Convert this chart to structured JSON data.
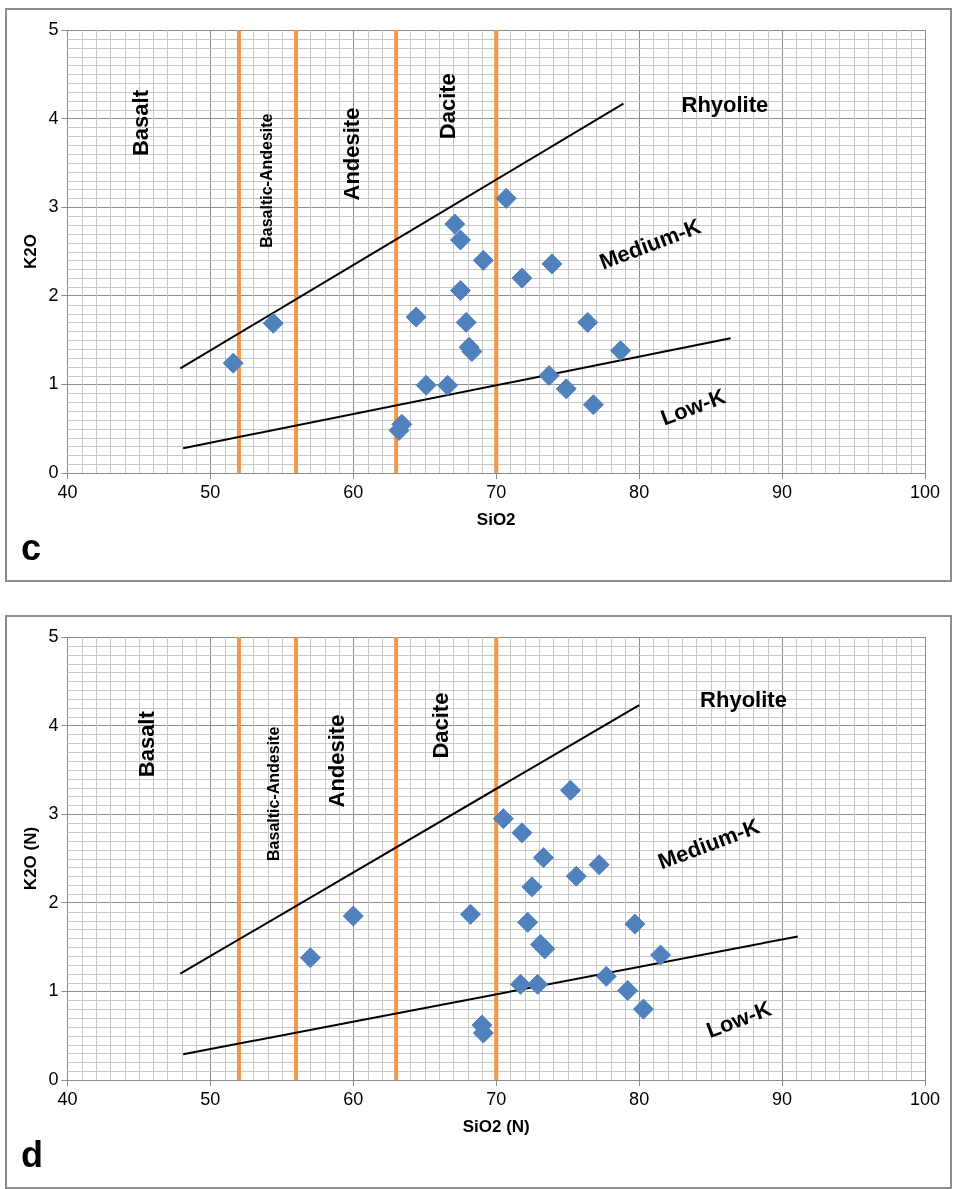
{
  "chart_data": [
    {
      "type": "scatter",
      "xlabel": "SiO2",
      "ylabel": "K2O",
      "xlim": [
        40,
        100
      ],
      "xticks": [
        40,
        50,
        60,
        70,
        80,
        90,
        100
      ],
      "ylim": [
        0,
        5
      ],
      "yticks": [
        0,
        1,
        2,
        3,
        4,
        5
      ],
      "grid": true,
      "legend": false,
      "marker": "diamond",
      "x": [
        51.6,
        54.4,
        63.4,
        63.2,
        64.4,
        65.1,
        66.6,
        67.1,
        67.5,
        67.5,
        67.9,
        68.1,
        68.3,
        69.1,
        70.7,
        71.8,
        73.7,
        73.9,
        74.9,
        76.4,
        76.8,
        78.7
      ],
      "series": [
        {
          "color": "#4f81bd",
          "values": [
            1.24,
            1.69,
            0.55,
            0.48,
            1.76,
            0.99,
            0.99,
            2.81,
            2.63,
            2.06,
            1.7,
            1.42,
            1.37,
            2.4,
            3.1,
            2.2,
            1.1,
            2.36,
            0.95,
            1.7,
            0.77,
            1.38
          ]
        },
        {
          "type": "line",
          "marker": "none",
          "color": "#000000",
          "x": [
            47.9,
            78.9
          ],
          "values": [
            1.18,
            4.17
          ]
        },
        {
          "type": "line",
          "marker": "none",
          "color": "#000000",
          "x": [
            48.1,
            86.4
          ],
          "values": [
            0.28,
            1.52
          ]
        }
      ],
      "ref_lines": [
        {
          "axis": "x",
          "value": 52,
          "color": "#f79646"
        },
        {
          "axis": "x",
          "value": 56,
          "color": "#f79646"
        },
        {
          "axis": "x",
          "value": 63,
          "color": "#f79646"
        },
        {
          "axis": "x",
          "value": 70,
          "color": "#f79646"
        }
      ],
      "annotations": [
        "Basalt",
        "Basaltic-Andesite",
        "Andesite",
        "Dacite",
        "Rhyolite",
        "Medium-K",
        "Low-K",
        "c"
      ]
    },
    {
      "type": "scatter",
      "xlabel": "SiO2 (N)",
      "ylabel": "K2O (N)",
      "xlim": [
        40,
        100
      ],
      "xticks": [
        40,
        50,
        60,
        70,
        80,
        90,
        100
      ],
      "ylim": [
        0,
        5
      ],
      "yticks": [
        0,
        1,
        2,
        3,
        4,
        5
      ],
      "grid": true,
      "legend": false,
      "marker": "diamond",
      "x": [
        57,
        60,
        68.2,
        69,
        69.1,
        70.5,
        71.8,
        71.7,
        72.2,
        72.5,
        72.9,
        73.1,
        73.4,
        73.3,
        75.2,
        75.6,
        77.2,
        77.7,
        79.2,
        79.7,
        80.3,
        81.5
      ],
      "series": [
        {
          "color": "#4f81bd",
          "values": [
            1.38,
            1.85,
            1.87,
            0.62,
            0.53,
            2.95,
            2.79,
            1.08,
            1.78,
            2.18,
            1.08,
            1.53,
            1.48,
            2.51,
            3.27,
            2.3,
            2.43,
            1.17,
            1.01,
            1.76,
            0.8,
            1.41
          ]
        },
        {
          "type": "line",
          "marker": "none",
          "color": "#000000",
          "x": [
            47.9,
            80
          ],
          "values": [
            1.2,
            4.23
          ]
        },
        {
          "type": "line",
          "marker": "none",
          "color": "#000000",
          "x": [
            48.1,
            91.1
          ],
          "values": [
            0.29,
            1.62
          ]
        }
      ],
      "ref_lines": [
        {
          "axis": "x",
          "value": 52,
          "color": "#f79646"
        },
        {
          "axis": "x",
          "value": 56,
          "color": "#f79646"
        },
        {
          "axis": "x",
          "value": 63,
          "color": "#f79646"
        },
        {
          "axis": "x",
          "value": 70,
          "color": "#f79646"
        }
      ],
      "annotations": [
        "Basalt",
        "Basaltic-Andesite",
        "Andesite",
        "Dacite",
        "Rhyolite",
        "Medium-K",
        "Low-K",
        "d"
      ]
    }
  ]
}
